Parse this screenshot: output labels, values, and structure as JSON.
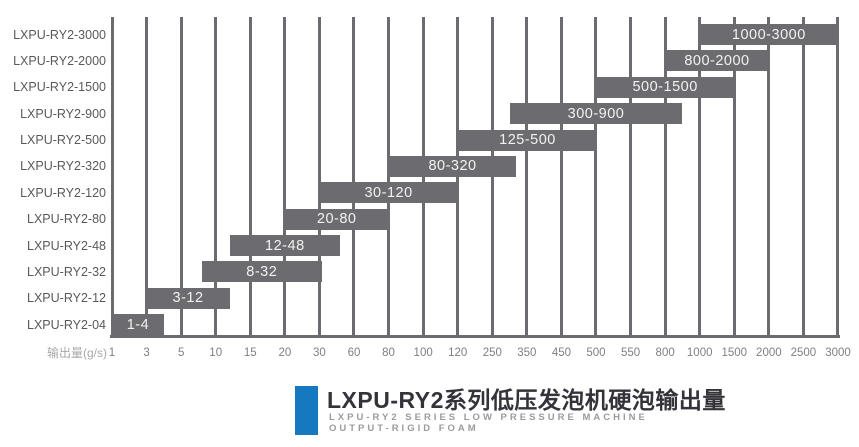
{
  "colors": {
    "bar": "#6c6b70",
    "grid": "#6c6b70",
    "axis": "#6c6b70",
    "bar_text": "#f2f2f2",
    "row_label": "#5a585c",
    "tick_label": "#7f7f82",
    "axis_label": "#a9a9ab",
    "accent": "#1678be",
    "title": "#33333a",
    "subtitle": "#9b9b9d"
  },
  "chart_data": {
    "type": "bar",
    "subtype": "horizontal-range-bars",
    "orientation": "horizontal",
    "grid": true,
    "legend": false,
    "x_axis_label": "输出量(g/s)",
    "x_scale": "piecewise-linear-between-equally-spaced-ticks",
    "x_ticks": [
      1,
      3,
      5,
      10,
      15,
      20,
      30,
      60,
      80,
      100,
      120,
      250,
      350,
      450,
      500,
      550,
      800,
      1000,
      1500,
      2000,
      2500,
      3000
    ],
    "rows": [
      {
        "model": "LXPU-RY2-3000",
        "min": 1000,
        "max": 3000,
        "label": "1000-3000"
      },
      {
        "model": "LXPU-RY2-2000",
        "min": 800,
        "max": 2000,
        "label": "800-2000"
      },
      {
        "model": "LXPU-RY2-1500",
        "min": 500,
        "max": 1500,
        "label": "500-1500"
      },
      {
        "model": "LXPU-RY2-900",
        "min": 300,
        "max": 900,
        "label": "300-900"
      },
      {
        "model": "LXPU-RY2-500",
        "min": 125,
        "max": 500,
        "label": "125-500"
      },
      {
        "model": "LXPU-RY2-320",
        "min": 80,
        "max": 320,
        "label": "80-320"
      },
      {
        "model": "LXPU-RY2-120",
        "min": 30,
        "max": 120,
        "label": "30-120"
      },
      {
        "model": "LXPU-RY2-80",
        "min": 20,
        "max": 80,
        "label": "20-80"
      },
      {
        "model": "LXPU-RY2-48",
        "min": 12,
        "max": 48,
        "label": "12-48"
      },
      {
        "model": "LXPU-RY2-32",
        "min": 8,
        "max": 32,
        "label": "8-32"
      },
      {
        "model": "LXPU-RY2-12",
        "min": 3,
        "max": 12,
        "label": "3-12"
      },
      {
        "model": "LXPU-RY2-04",
        "min": 1,
        "max": 4,
        "label": "1-4"
      }
    ],
    "title": "LXPU-RY2系列低压发泡机硬泡输出量"
  },
  "footer": {
    "title": "LXPU-RY2系列低压发泡机硬泡输出量",
    "subtitle_line1": "LXPU-RY2 SERIES LOW PRESSURE MACHINE",
    "subtitle_line2": "OUTPUT-RIGID FOAM"
  }
}
